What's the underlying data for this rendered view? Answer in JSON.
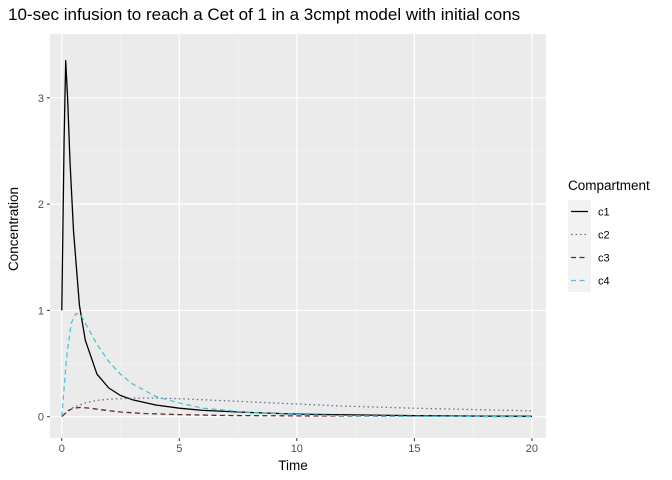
{
  "chart_data": {
    "type": "line",
    "title": "10-sec infusion to reach a Cet of 1 in a 3cmpt model with initial cons",
    "xlabel": "Time",
    "ylabel": "Concentration",
    "xlim": [
      -0.5,
      20.6
    ],
    "ylim": [
      -0.2,
      3.6
    ],
    "x_ticks": [
      0,
      5,
      10,
      15,
      20
    ],
    "y_ticks": [
      0,
      1,
      2,
      3
    ],
    "grid": true,
    "legend": {
      "title": "Compartment",
      "position": "right"
    },
    "series": [
      {
        "name": "c1",
        "color": "#000000",
        "dash": "solid",
        "x": [
          0,
          0.1,
          0.167,
          0.25,
          0.35,
          0.5,
          0.75,
          1,
          1.5,
          2,
          2.5,
          3,
          4,
          5,
          6,
          8,
          10,
          12,
          15,
          18,
          20
        ],
        "y": [
          1.0,
          2.6,
          3.35,
          3.0,
          2.4,
          1.75,
          1.05,
          0.72,
          0.4,
          0.27,
          0.2,
          0.16,
          0.11,
          0.08,
          0.06,
          0.04,
          0.025,
          0.018,
          0.01,
          0.006,
          0.004
        ]
      },
      {
        "name": "c2",
        "color": "#6b6b8c",
        "dash": "dotted",
        "x": [
          0,
          0.25,
          0.5,
          1,
          1.5,
          2,
          3,
          4,
          5,
          7,
          10,
          12,
          15,
          18,
          20
        ],
        "y": [
          0,
          0.05,
          0.09,
          0.13,
          0.155,
          0.165,
          0.175,
          0.175,
          0.17,
          0.15,
          0.12,
          0.1,
          0.08,
          0.065,
          0.055
        ]
      },
      {
        "name": "c3",
        "color": "#5c2a2a",
        "dash": "dashed",
        "x": [
          0,
          0.25,
          0.5,
          0.8,
          1.2,
          1.7,
          2.5,
          3.5,
          5,
          7,
          10,
          15,
          20
        ],
        "y": [
          0,
          0.055,
          0.08,
          0.088,
          0.08,
          0.065,
          0.045,
          0.03,
          0.02,
          0.012,
          0.008,
          0.004,
          0.002
        ]
      },
      {
        "name": "c4",
        "color": "#4fc3d6",
        "dash": "dashed",
        "x": [
          0,
          0.2,
          0.4,
          0.6,
          0.8,
          1,
          1.5,
          2,
          2.5,
          3,
          4,
          5,
          6,
          8,
          10,
          12,
          15,
          20
        ],
        "y": [
          0,
          0.55,
          0.88,
          0.97,
          0.96,
          0.88,
          0.68,
          0.52,
          0.4,
          0.31,
          0.19,
          0.13,
          0.08,
          0.04,
          0.02,
          0.01,
          0.004,
          0.001
        ]
      }
    ]
  }
}
